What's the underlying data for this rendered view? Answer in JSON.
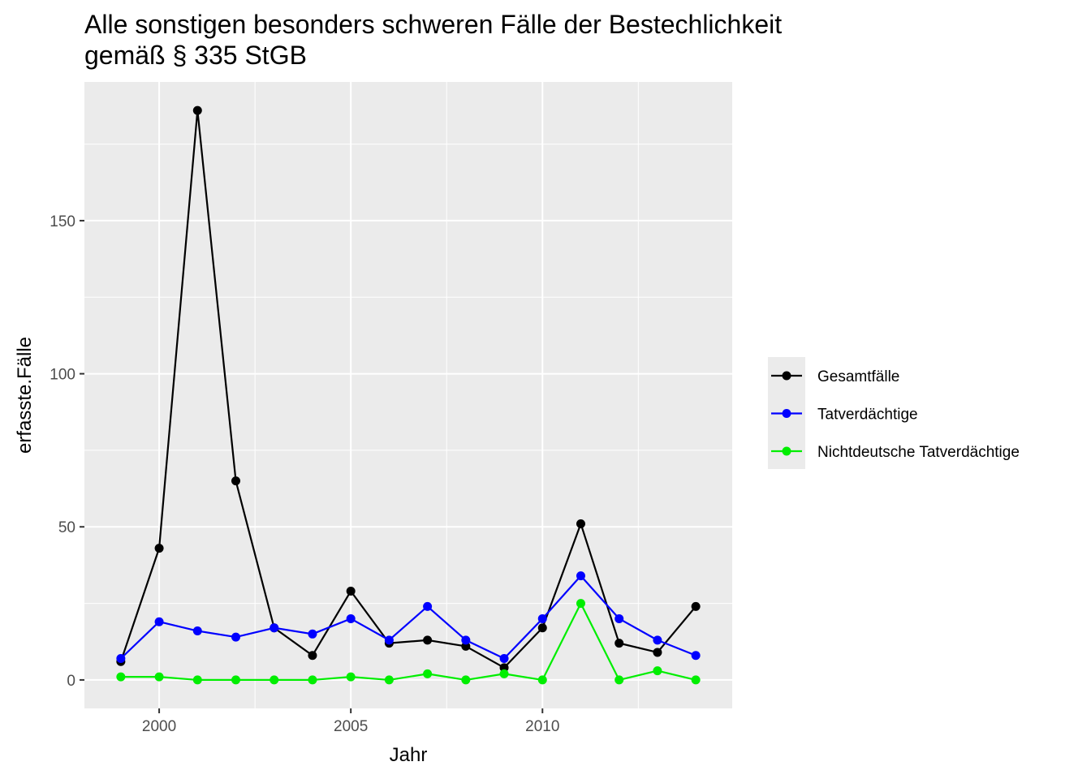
{
  "chart_data": {
    "type": "line",
    "title_lines": [
      "Alle sonstigen besonders schweren Fälle der Bestechlichkeit",
      "gemäß § 335 StGB"
    ],
    "xlabel": "Jahr",
    "ylabel": "erfasste.Fälle",
    "x": [
      1999,
      2000,
      2001,
      2002,
      2003,
      2004,
      2005,
      2006,
      2007,
      2008,
      2009,
      2010,
      2011,
      2012,
      2013,
      2014
    ],
    "xlim": [
      1998.05,
      2014.95
    ],
    "ylim": [
      -9.3,
      195.3
    ],
    "x_ticks": [
      2000,
      2005,
      2010
    ],
    "y_ticks": [
      0,
      50,
      100,
      150
    ],
    "x_tick_labels": [
      "2000",
      "2005",
      "2010"
    ],
    "y_tick_labels": [
      "0",
      "50",
      "100",
      "150"
    ],
    "grid": true,
    "legend_position": "right",
    "series": [
      {
        "name": "Gesamtfälle",
        "color": "#000000",
        "values": [
          6,
          43,
          186,
          65,
          17,
          8,
          29,
          12,
          13,
          11,
          4,
          17,
          51,
          12,
          9,
          24
        ]
      },
      {
        "name": "Tatverdächtige",
        "color": "#0000ff",
        "values": [
          7,
          19,
          16,
          14,
          17,
          15,
          20,
          13,
          24,
          13,
          7,
          20,
          34,
          20,
          13,
          8
        ]
      },
      {
        "name": "Nichtdeutsche Tatverdächtige",
        "color": "#00ee00",
        "values": [
          1,
          1,
          0,
          0,
          0,
          0,
          1,
          0,
          2,
          0,
          2,
          0,
          25,
          0,
          3,
          0
        ]
      }
    ]
  }
}
